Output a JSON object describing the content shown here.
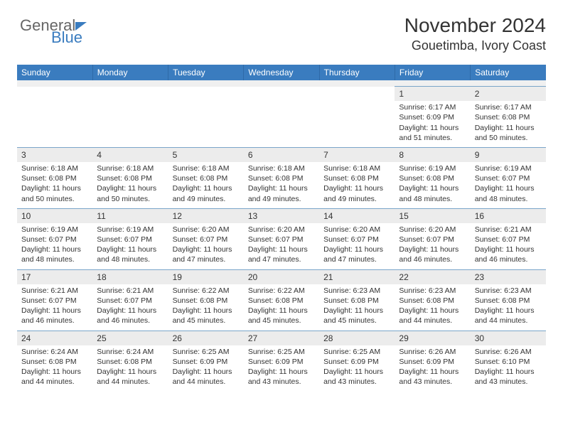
{
  "logo": {
    "text_general": "General",
    "text_blue": "Blue"
  },
  "header": {
    "month_title": "November 2024",
    "location": "Gouetimba, Ivory Coast"
  },
  "colors": {
    "header_bg": "#3a7cbf",
    "header_text": "#ffffff",
    "row_border": "#7aa5c9",
    "daynum_bg": "#ececec",
    "spacer_bg": "#f0f0f0"
  },
  "weekdays": [
    "Sunday",
    "Monday",
    "Tuesday",
    "Wednesday",
    "Thursday",
    "Friday",
    "Saturday"
  ],
  "weeks": [
    [
      null,
      null,
      null,
      null,
      null,
      {
        "day": "1",
        "sunrise": "Sunrise: 6:17 AM",
        "sunset": "Sunset: 6:09 PM",
        "daylight1": "Daylight: 11 hours",
        "daylight2": "and 51 minutes."
      },
      {
        "day": "2",
        "sunrise": "Sunrise: 6:17 AM",
        "sunset": "Sunset: 6:08 PM",
        "daylight1": "Daylight: 11 hours",
        "daylight2": "and 50 minutes."
      }
    ],
    [
      {
        "day": "3",
        "sunrise": "Sunrise: 6:18 AM",
        "sunset": "Sunset: 6:08 PM",
        "daylight1": "Daylight: 11 hours",
        "daylight2": "and 50 minutes."
      },
      {
        "day": "4",
        "sunrise": "Sunrise: 6:18 AM",
        "sunset": "Sunset: 6:08 PM",
        "daylight1": "Daylight: 11 hours",
        "daylight2": "and 50 minutes."
      },
      {
        "day": "5",
        "sunrise": "Sunrise: 6:18 AM",
        "sunset": "Sunset: 6:08 PM",
        "daylight1": "Daylight: 11 hours",
        "daylight2": "and 49 minutes."
      },
      {
        "day": "6",
        "sunrise": "Sunrise: 6:18 AM",
        "sunset": "Sunset: 6:08 PM",
        "daylight1": "Daylight: 11 hours",
        "daylight2": "and 49 minutes."
      },
      {
        "day": "7",
        "sunrise": "Sunrise: 6:18 AM",
        "sunset": "Sunset: 6:08 PM",
        "daylight1": "Daylight: 11 hours",
        "daylight2": "and 49 minutes."
      },
      {
        "day": "8",
        "sunrise": "Sunrise: 6:19 AM",
        "sunset": "Sunset: 6:08 PM",
        "daylight1": "Daylight: 11 hours",
        "daylight2": "and 48 minutes."
      },
      {
        "day": "9",
        "sunrise": "Sunrise: 6:19 AM",
        "sunset": "Sunset: 6:07 PM",
        "daylight1": "Daylight: 11 hours",
        "daylight2": "and 48 minutes."
      }
    ],
    [
      {
        "day": "10",
        "sunrise": "Sunrise: 6:19 AM",
        "sunset": "Sunset: 6:07 PM",
        "daylight1": "Daylight: 11 hours",
        "daylight2": "and 48 minutes."
      },
      {
        "day": "11",
        "sunrise": "Sunrise: 6:19 AM",
        "sunset": "Sunset: 6:07 PM",
        "daylight1": "Daylight: 11 hours",
        "daylight2": "and 48 minutes."
      },
      {
        "day": "12",
        "sunrise": "Sunrise: 6:20 AM",
        "sunset": "Sunset: 6:07 PM",
        "daylight1": "Daylight: 11 hours",
        "daylight2": "and 47 minutes."
      },
      {
        "day": "13",
        "sunrise": "Sunrise: 6:20 AM",
        "sunset": "Sunset: 6:07 PM",
        "daylight1": "Daylight: 11 hours",
        "daylight2": "and 47 minutes."
      },
      {
        "day": "14",
        "sunrise": "Sunrise: 6:20 AM",
        "sunset": "Sunset: 6:07 PM",
        "daylight1": "Daylight: 11 hours",
        "daylight2": "and 47 minutes."
      },
      {
        "day": "15",
        "sunrise": "Sunrise: 6:20 AM",
        "sunset": "Sunset: 6:07 PM",
        "daylight1": "Daylight: 11 hours",
        "daylight2": "and 46 minutes."
      },
      {
        "day": "16",
        "sunrise": "Sunrise: 6:21 AM",
        "sunset": "Sunset: 6:07 PM",
        "daylight1": "Daylight: 11 hours",
        "daylight2": "and 46 minutes."
      }
    ],
    [
      {
        "day": "17",
        "sunrise": "Sunrise: 6:21 AM",
        "sunset": "Sunset: 6:07 PM",
        "daylight1": "Daylight: 11 hours",
        "daylight2": "and 46 minutes."
      },
      {
        "day": "18",
        "sunrise": "Sunrise: 6:21 AM",
        "sunset": "Sunset: 6:07 PM",
        "daylight1": "Daylight: 11 hours",
        "daylight2": "and 46 minutes."
      },
      {
        "day": "19",
        "sunrise": "Sunrise: 6:22 AM",
        "sunset": "Sunset: 6:08 PM",
        "daylight1": "Daylight: 11 hours",
        "daylight2": "and 45 minutes."
      },
      {
        "day": "20",
        "sunrise": "Sunrise: 6:22 AM",
        "sunset": "Sunset: 6:08 PM",
        "daylight1": "Daylight: 11 hours",
        "daylight2": "and 45 minutes."
      },
      {
        "day": "21",
        "sunrise": "Sunrise: 6:23 AM",
        "sunset": "Sunset: 6:08 PM",
        "daylight1": "Daylight: 11 hours",
        "daylight2": "and 45 minutes."
      },
      {
        "day": "22",
        "sunrise": "Sunrise: 6:23 AM",
        "sunset": "Sunset: 6:08 PM",
        "daylight1": "Daylight: 11 hours",
        "daylight2": "and 44 minutes."
      },
      {
        "day": "23",
        "sunrise": "Sunrise: 6:23 AM",
        "sunset": "Sunset: 6:08 PM",
        "daylight1": "Daylight: 11 hours",
        "daylight2": "and 44 minutes."
      }
    ],
    [
      {
        "day": "24",
        "sunrise": "Sunrise: 6:24 AM",
        "sunset": "Sunset: 6:08 PM",
        "daylight1": "Daylight: 11 hours",
        "daylight2": "and 44 minutes."
      },
      {
        "day": "25",
        "sunrise": "Sunrise: 6:24 AM",
        "sunset": "Sunset: 6:08 PM",
        "daylight1": "Daylight: 11 hours",
        "daylight2": "and 44 minutes."
      },
      {
        "day": "26",
        "sunrise": "Sunrise: 6:25 AM",
        "sunset": "Sunset: 6:09 PM",
        "daylight1": "Daylight: 11 hours",
        "daylight2": "and 44 minutes."
      },
      {
        "day": "27",
        "sunrise": "Sunrise: 6:25 AM",
        "sunset": "Sunset: 6:09 PM",
        "daylight1": "Daylight: 11 hours",
        "daylight2": "and 43 minutes."
      },
      {
        "day": "28",
        "sunrise": "Sunrise: 6:25 AM",
        "sunset": "Sunset: 6:09 PM",
        "daylight1": "Daylight: 11 hours",
        "daylight2": "and 43 minutes."
      },
      {
        "day": "29",
        "sunrise": "Sunrise: 6:26 AM",
        "sunset": "Sunset: 6:09 PM",
        "daylight1": "Daylight: 11 hours",
        "daylight2": "and 43 minutes."
      },
      {
        "day": "30",
        "sunrise": "Sunrise: 6:26 AM",
        "sunset": "Sunset: 6:10 PM",
        "daylight1": "Daylight: 11 hours",
        "daylight2": "and 43 minutes."
      }
    ]
  ]
}
